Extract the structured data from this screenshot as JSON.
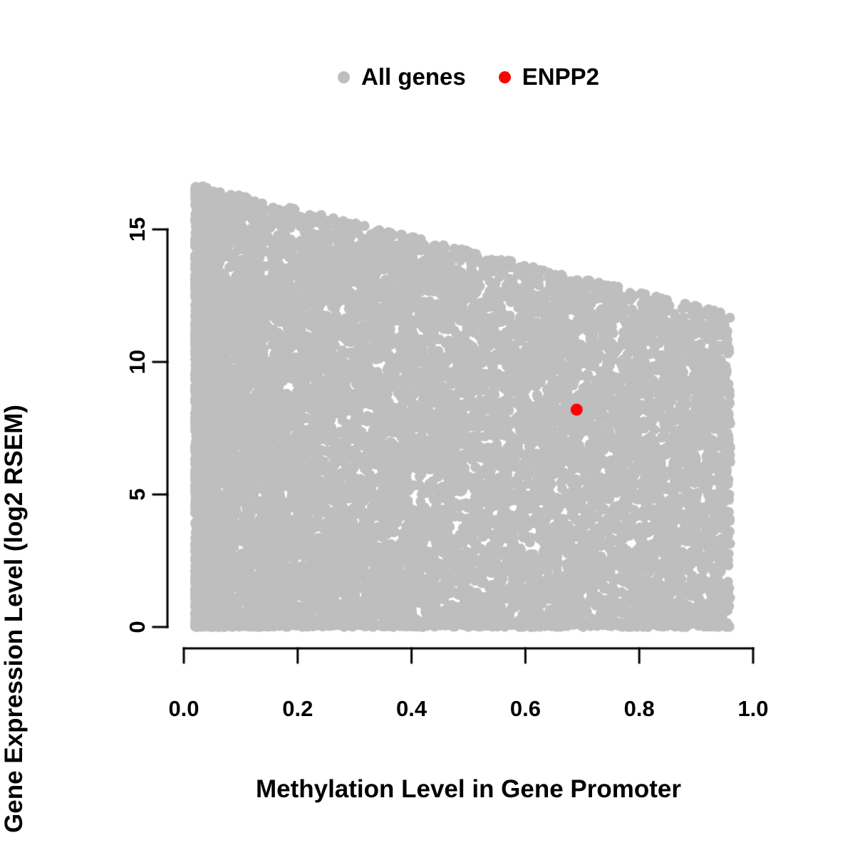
{
  "chart_data": {
    "type": "scatter",
    "title": "",
    "xlabel": "Methylation Level in Gene Promoter",
    "ylabel": "Gene Expression Level (log2 RSEM)",
    "xlim": [
      0.0,
      1.0
    ],
    "ylim": [
      0,
      15
    ],
    "grid": false,
    "legend_position": "top",
    "x_ticks": [
      0.0,
      0.2,
      0.4,
      0.6,
      0.8,
      1.0
    ],
    "x_tick_labels": [
      "0.0",
      "0.2",
      "0.4",
      "0.6",
      "0.8",
      "1.0"
    ],
    "y_ticks": [
      0,
      5,
      10,
      15
    ],
    "y_tick_labels": [
      "0",
      "5",
      "10",
      "15"
    ],
    "legend": [
      {
        "label": "All genes",
        "color": "#bebebe"
      },
      {
        "label": "ENPP2",
        "color": "#ff0000"
      }
    ],
    "series": [
      {
        "name": "All genes",
        "color": "#bebebe",
        "render": "dense_cloud",
        "n_points": 12000,
        "seed": 42,
        "x_range": [
          0.02,
          0.96
        ],
        "y_min": 0,
        "y_envelope_intercept": 16.8,
        "y_envelope_slope": -5.2,
        "x_left_skew_power": 2.0,
        "left_mix_fraction": 0.5,
        "y_power": 1.05,
        "bottom_band_fraction": 0.04,
        "point_radius": 7
      },
      {
        "name": "ENPP2",
        "color": "#ff0000",
        "render": "points",
        "points": [
          {
            "x": 0.69,
            "y": 8.2
          }
        ],
        "point_radius": 8.5
      }
    ],
    "highlighted_point": {
      "label": "ENPP2",
      "x": 0.69,
      "y": 8.2,
      "color": "#ff0000"
    },
    "axis_color": "#000000"
  }
}
